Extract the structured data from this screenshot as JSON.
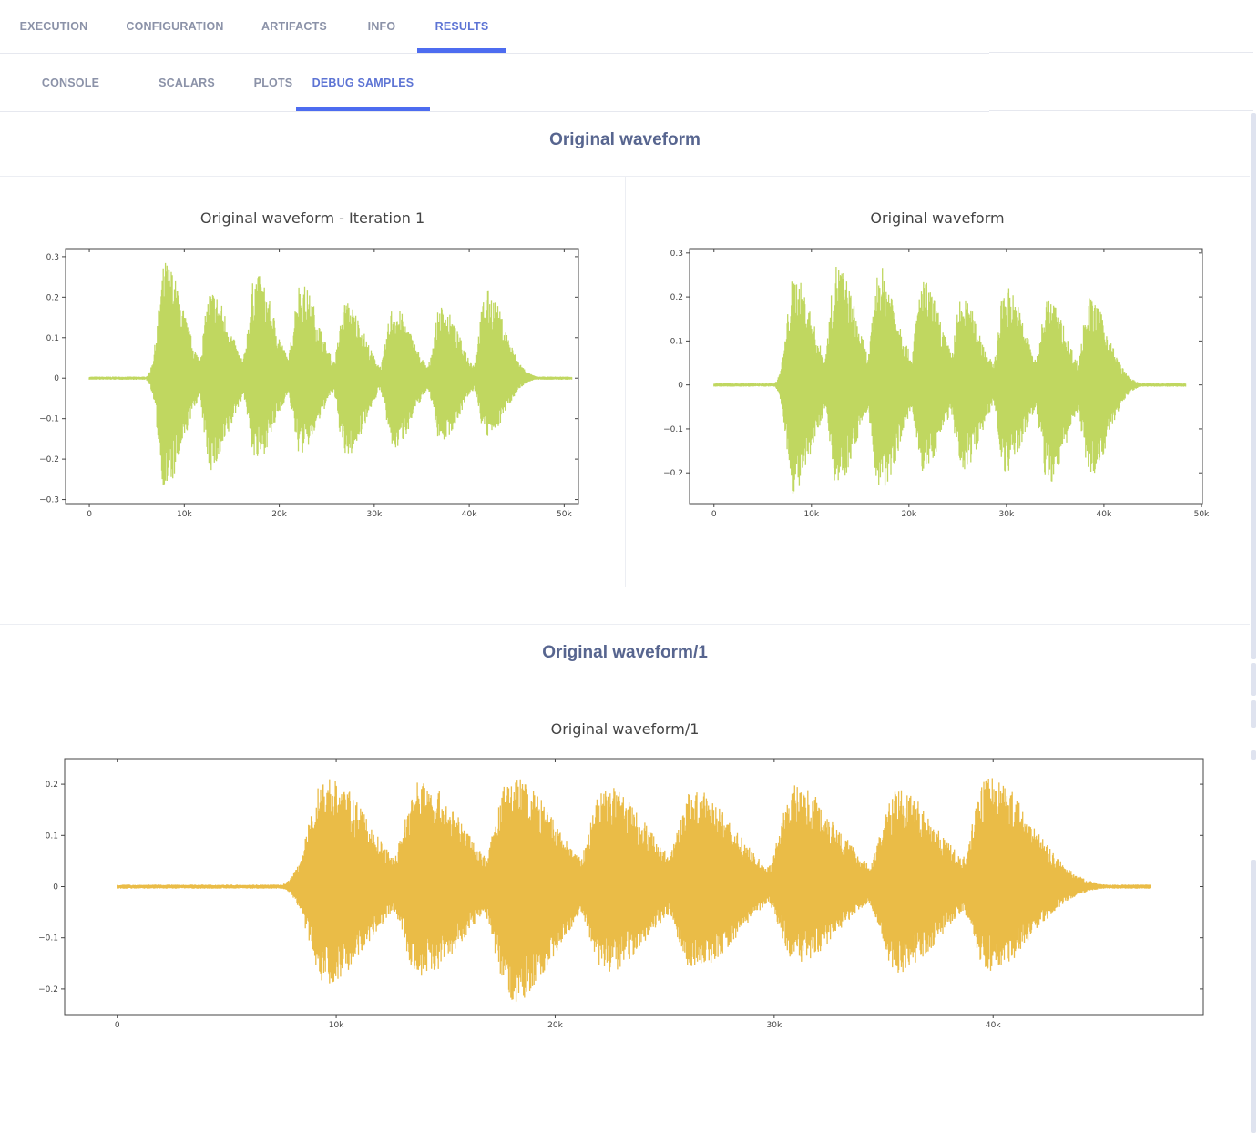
{
  "main_tabs": [
    "EXECUTION",
    "CONFIGURATION",
    "ARTIFACTS",
    "INFO",
    "RESULTS"
  ],
  "main_active": "RESULTS",
  "sub_tabs": [
    "CONSOLE",
    "SCALARS",
    "PLOTS",
    "DEBUG SAMPLES"
  ],
  "sub_active": "DEBUG SAMPLES",
  "sections": [
    {
      "title": "Original waveform"
    },
    {
      "title": "Original waveform/1"
    }
  ],
  "colors": {
    "accent": "#4d6cf0",
    "wave_green": "#c0d760",
    "wave_yellow": "#eabc47"
  },
  "chart_data": [
    {
      "type": "line",
      "title": "Original waveform - Iteration 1",
      "xlabel": "",
      "ylabel": "",
      "xlim": [
        -2500,
        51500
      ],
      "ylim": [
        -0.31,
        0.32
      ],
      "xticks": [
        "0",
        "10k",
        "20k",
        "30k",
        "40k",
        "50k"
      ],
      "yticks": [
        "0.3",
        "0.2",
        "0.1",
        "0",
        "−0.1",
        "−0.2",
        "−0.3"
      ],
      "sample_count": 50800,
      "bursts": [
        {
          "center": 8000,
          "peak": 0.29,
          "trough": -0.28
        },
        {
          "center": 12800,
          "peak": 0.22,
          "trough": -0.23
        },
        {
          "center": 17500,
          "peak": 0.26,
          "trough": -0.21
        },
        {
          "center": 22200,
          "peak": 0.24,
          "trough": -0.19
        },
        {
          "center": 27000,
          "peak": 0.19,
          "trough": -0.2
        },
        {
          "center": 32000,
          "peak": 0.18,
          "trough": -0.18
        },
        {
          "center": 37000,
          "peak": 0.18,
          "trough": -0.16
        },
        {
          "center": 41800,
          "peak": 0.22,
          "trough": -0.15
        }
      ],
      "color": "#c0d760"
    },
    {
      "type": "line",
      "title": "Original waveform",
      "xlabel": "",
      "ylabel": "",
      "xlim": [
        -2500,
        50100
      ],
      "ylim": [
        -0.27,
        0.31
      ],
      "xticks": [
        "0",
        "10k",
        "20k",
        "30k",
        "40k",
        "50k"
      ],
      "yticks": [
        "0.3",
        "0.2",
        "0.1",
        "0",
        "−0.1",
        "−0.2"
      ],
      "sample_count": 48400,
      "bursts": [
        {
          "center": 8200,
          "peak": 0.25,
          "trough": -0.25
        },
        {
          "center": 12600,
          "peak": 0.28,
          "trough": -0.23
        },
        {
          "center": 17000,
          "peak": 0.27,
          "trough": -0.25
        },
        {
          "center": 21400,
          "peak": 0.24,
          "trough": -0.2
        },
        {
          "center": 25400,
          "peak": 0.2,
          "trough": -0.2
        },
        {
          "center": 29900,
          "peak": 0.23,
          "trough": -0.2
        },
        {
          "center": 34200,
          "peak": 0.2,
          "trough": -0.23
        },
        {
          "center": 38500,
          "peak": 0.2,
          "trough": -0.21
        }
      ],
      "color": "#c0d760"
    },
    {
      "type": "line",
      "title": "Original waveform/1",
      "xlabel": "",
      "ylabel": "",
      "xlim": [
        -2400,
        49600
      ],
      "ylim": [
        -0.25,
        0.25
      ],
      "xticks": [
        "0",
        "10k",
        "20k",
        "30k",
        "40k"
      ],
      "yticks": [
        "0.2",
        "0.1",
        "0",
        "−0.1",
        "−0.2"
      ],
      "sample_count": 47200,
      "bursts": [
        {
          "center": 9500,
          "peak": 0.22,
          "trough": -0.19
        },
        {
          "center": 13800,
          "peak": 0.21,
          "trough": -0.18
        },
        {
          "center": 18000,
          "peak": 0.22,
          "trough": -0.23
        },
        {
          "center": 22300,
          "peak": 0.2,
          "trough": -0.17
        },
        {
          "center": 26300,
          "peak": 0.19,
          "trough": -0.17
        },
        {
          "center": 31000,
          "peak": 0.2,
          "trough": -0.15
        },
        {
          "center": 35600,
          "peak": 0.19,
          "trough": -0.17
        },
        {
          "center": 39800,
          "peak": 0.22,
          "trough": -0.17
        }
      ],
      "color": "#eabc47"
    }
  ]
}
